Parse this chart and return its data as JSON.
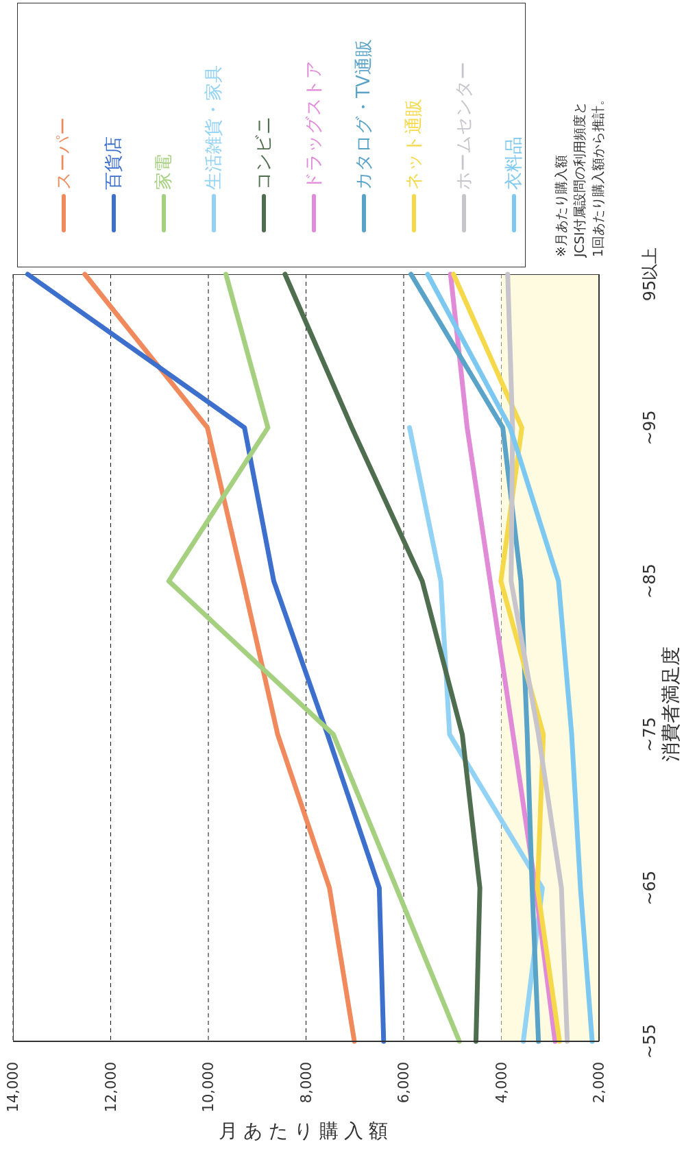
{
  "chart_data": {
    "type": "line",
    "orientation": "horizontal",
    "categories": [
      "95以上",
      "~95",
      "~85",
      "~75",
      "~65",
      "~55"
    ],
    "series": [
      {
        "name": "スーパー",
        "color": "#f08a5d",
        "values": [
          12530,
          10020,
          9290,
          8580,
          7520,
          7010
        ]
      },
      {
        "name": "百貨店",
        "color": "#3d6fcc",
        "values": [
          13700,
          9260,
          8660,
          7560,
          6500,
          6410
        ]
      },
      {
        "name": "家電",
        "color": "#a5d07f",
        "values": [
          9640,
          8780,
          10810,
          7440,
          6150,
          4860
        ]
      },
      {
        "name": "生活雑貨・家具",
        "color": "#92d2f4",
        "values": [
          null,
          5880,
          5240,
          5060,
          3160,
          3550
        ]
      },
      {
        "name": "コンビニ",
        "color": "#4f6e4f",
        "values": [
          8430,
          7060,
          5620,
          4800,
          4440,
          4520
        ]
      },
      {
        "name": "ドラッグストア",
        "color": "#e08ad8",
        "values": [
          5040,
          4700,
          4230,
          3760,
          3300,
          2900
        ]
      },
      {
        "name": "カタログ・TV通販",
        "color": "#5aa3c8",
        "values": [
          5850,
          3970,
          3600,
          3470,
          3370,
          3240
        ]
      },
      {
        "name": "ネット通販",
        "color": "#f5d94a",
        "values": [
          4980,
          3580,
          4010,
          3140,
          3260,
          2810
        ]
      },
      {
        "name": "ホームセンター",
        "color": "#c8c4cc",
        "values": [
          3870,
          3770,
          3800,
          3240,
          2770,
          2650
        ]
      },
      {
        "name": "衣料品",
        "color": "#7cc8f0",
        "values": [
          5510,
          3820,
          2830,
          2560,
          2380,
          2140
        ]
      }
    ],
    "xlabel": "月あたり購入額",
    "ylabel": "消費者満足度",
    "xlim": [
      14000,
      2000
    ],
    "xticks": [
      {
        "value": 14000,
        "label": "14,000"
      },
      {
        "value": 12000,
        "label": "12,000"
      },
      {
        "value": 10000,
        "label": "10,000"
      },
      {
        "value": 8000,
        "label": "8,000"
      },
      {
        "value": 6000,
        "label": "6,000"
      },
      {
        "value": 4000,
        "label": "4,000"
      },
      {
        "value": 2000,
        "label": "2,000"
      }
    ],
    "bands": [
      {
        "axis": "x",
        "from": 2000,
        "to": 4000,
        "color": "#fffbe0"
      }
    ],
    "grid": "x",
    "legend": "top right",
    "annotations": [
      "※月あたり購入額\nJCSI付属設問の利用頻度と\n1回あたり購入額から推計。"
    ]
  }
}
